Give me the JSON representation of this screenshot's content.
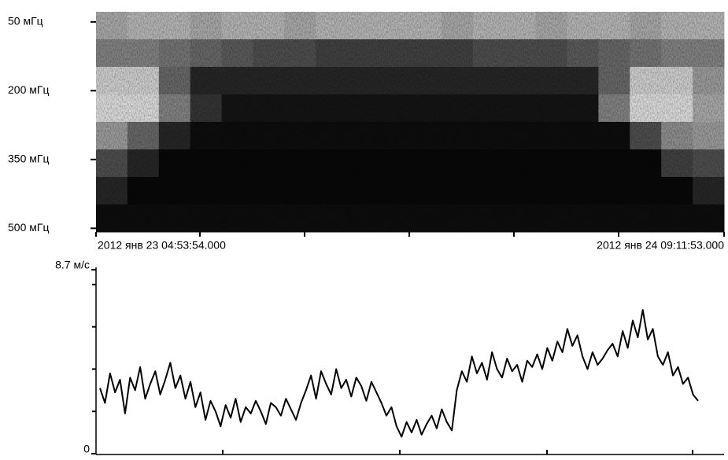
{
  "chart_data": [
    {
      "type": "heatmap",
      "yticks": [
        {
          "value": 50,
          "label": "50 мГц"
        },
        {
          "value": 200,
          "label": "200 мГц"
        },
        {
          "value": 350,
          "label": "350 мГц"
        },
        {
          "value": 500,
          "label": "500 мГц"
        }
      ],
      "ylim": [
        28,
        508
      ],
      "x_start": "2012 янв 23 04:53:54.000",
      "x_end": "2012 янв 24 09:11:53.000",
      "values": [
        [
          0.35,
          0.3,
          0.3,
          0.35,
          0.3,
          0.3,
          0.35,
          0.3,
          0.3,
          0.3,
          0.3,
          0.35,
          0.3,
          0.3,
          0.35,
          0.3,
          0.3,
          0.35,
          0.3,
          0.3
        ],
        [
          0.5,
          0.5,
          0.55,
          0.6,
          0.65,
          0.7,
          0.7,
          0.75,
          0.75,
          0.75,
          0.75,
          0.75,
          0.7,
          0.7,
          0.7,
          0.65,
          0.6,
          0.55,
          0.5,
          0.5
        ],
        [
          0.2,
          0.2,
          0.6,
          0.85,
          0.85,
          0.85,
          0.85,
          0.85,
          0.85,
          0.85,
          0.85,
          0.85,
          0.85,
          0.85,
          0.85,
          0.85,
          0.6,
          0.2,
          0.2,
          0.4
        ],
        [
          0.15,
          0.15,
          0.5,
          0.8,
          0.92,
          0.92,
          0.92,
          0.92,
          0.92,
          0.92,
          0.92,
          0.92,
          0.92,
          0.92,
          0.92,
          0.92,
          0.5,
          0.15,
          0.15,
          0.35
        ],
        [
          0.4,
          0.6,
          0.85,
          0.95,
          0.95,
          0.95,
          0.95,
          0.95,
          0.95,
          0.95,
          0.95,
          0.95,
          0.95,
          0.95,
          0.95,
          0.95,
          0.95,
          0.7,
          0.45,
          0.4
        ],
        [
          0.7,
          0.85,
          0.97,
          0.97,
          0.97,
          0.97,
          0.97,
          0.97,
          0.97,
          0.97,
          0.97,
          0.97,
          0.97,
          0.97,
          0.97,
          0.97,
          0.97,
          0.97,
          0.75,
          0.7
        ],
        [
          0.85,
          0.97,
          0.97,
          0.97,
          0.97,
          0.97,
          0.97,
          0.97,
          0.97,
          0.97,
          0.97,
          0.97,
          0.97,
          0.97,
          0.97,
          0.97,
          0.97,
          0.97,
          0.97,
          0.85
        ],
        [
          0.95,
          0.95,
          0.95,
          0.95,
          0.95,
          0.95,
          0.95,
          0.95,
          0.95,
          0.95,
          0.95,
          0.95,
          0.95,
          0.95,
          0.95,
          0.95,
          0.95,
          0.95,
          0.95,
          0.95
        ]
      ]
    },
    {
      "type": "line",
      "ylim": [
        0,
        8.7
      ],
      "yticks": [
        0,
        {
          "value": 8.7,
          "label": "8.7 м/с"
        }
      ],
      "yminor": [
        2,
        4,
        6,
        8
      ],
      "color": "#000000",
      "values": [
        3.1,
        2.4,
        3.8,
        2.9,
        3.5,
        1.9,
        3.6,
        3.0,
        4.1,
        2.6,
        3.3,
        3.9,
        2.8,
        3.5,
        4.3,
        3.1,
        3.7,
        2.6,
        3.4,
        2.2,
        2.9,
        1.6,
        2.5,
        2.0,
        1.3,
        2.3,
        1.7,
        2.6,
        1.5,
        2.2,
        1.9,
        2.5,
        2.0,
        1.4,
        2.4,
        2.2,
        1.8,
        2.6,
        2.1,
        1.6,
        2.4,
        3.0,
        3.7,
        2.6,
        3.9,
        3.3,
        2.8,
        4.0,
        3.1,
        3.5,
        2.7,
        3.6,
        3.2,
        2.5,
        3.4,
        2.9,
        2.4,
        1.8,
        2.2,
        1.3,
        0.8,
        1.5,
        1.0,
        1.6,
        0.9,
        1.4,
        1.8,
        1.2,
        2.1,
        1.5,
        1.1,
        3.0,
        3.9,
        3.4,
        4.6,
        3.8,
        4.3,
        3.5,
        4.8,
        4.0,
        3.6,
        4.5,
        3.9,
        4.2,
        3.4,
        4.4,
        4.1,
        4.7,
        4.0,
        5.0,
        4.4,
        5.3,
        4.8,
        5.9,
        5.1,
        5.6,
        4.6,
        4.0,
        4.8,
        4.2,
        4.5,
        4.9,
        5.2,
        4.6,
        5.8,
        5.0,
        6.3,
        5.5,
        6.8,
        5.4,
        5.9,
        4.6,
        4.2,
        4.8,
        3.7,
        4.1,
        3.3,
        3.6,
        2.8,
        2.5
      ]
    }
  ]
}
